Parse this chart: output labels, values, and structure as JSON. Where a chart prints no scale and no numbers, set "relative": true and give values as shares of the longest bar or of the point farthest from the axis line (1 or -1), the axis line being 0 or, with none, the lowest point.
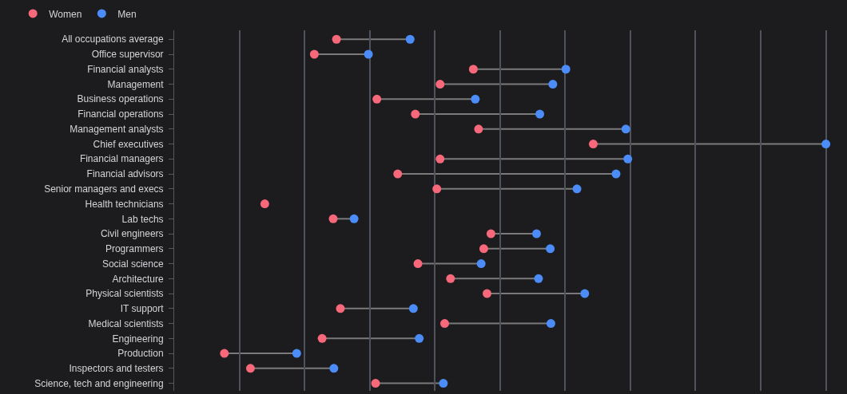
{
  "chart_data": {
    "type": "scatter",
    "relative": true,
    "orientation": "horizontal",
    "grid": "x",
    "legend": "top left",
    "marker": "circle",
    "categories": [
      "All occupations average",
      "Office supervisor",
      "Financial analysts",
      "Management",
      "Business operations",
      "Financial operations",
      "Management analysts",
      "Chief executives",
      "Financial managers",
      "Financial advisors",
      "Senior managers and execs",
      "Health technicians",
      "Lab techs",
      "Civil engineers",
      "Programmers",
      "Social science",
      "Architecture",
      "Physical scientists",
      "IT support",
      "Medical scientists",
      "Engineering",
      "Production",
      "Inspectors and testers",
      "Science, tech and engineering"
    ],
    "series": [
      {
        "name": "Women",
        "color": "#f7687b",
        "values": [
          0.249,
          0.215,
          0.459,
          0.408,
          0.311,
          0.37,
          0.467,
          0.643,
          0.408,
          0.343,
          0.403,
          0.139,
          0.244,
          0.486,
          0.475,
          0.374,
          0.424,
          0.48,
          0.255,
          0.415,
          0.227,
          0.077,
          0.117,
          0.309
        ]
      },
      {
        "name": "Men",
        "color": "#4b8cf8",
        "values": [
          0.362,
          0.298,
          0.601,
          0.581,
          0.462,
          0.561,
          0.693,
          1,
          0.696,
          0.678,
          0.618,
          null,
          0.276,
          0.556,
          0.577,
          0.471,
          0.559,
          0.63,
          0.367,
          0.578,
          0.376,
          0.188,
          0.245,
          0.413
        ]
      }
    ]
  }
}
